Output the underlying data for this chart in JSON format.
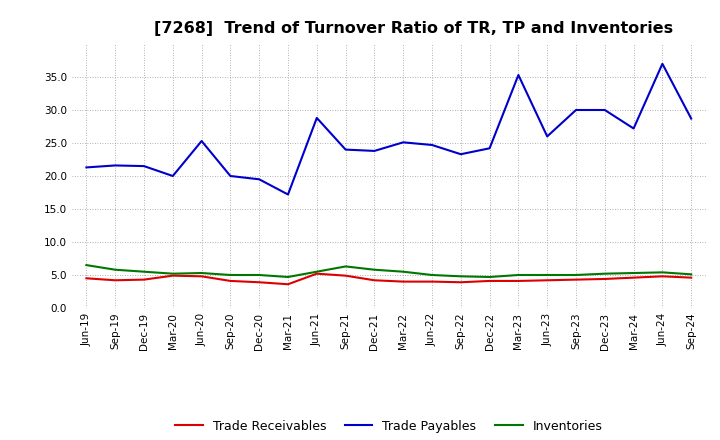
{
  "title": "[7268]  Trend of Turnover Ratio of TR, TP and Inventories",
  "ylim": [
    0.0,
    40.0
  ],
  "yticks": [
    0.0,
    5.0,
    10.0,
    15.0,
    20.0,
    25.0,
    30.0,
    35.0
  ],
  "background_color": "#ffffff",
  "plot_bg_color": "#ffffff",
  "grid_color": "#999999",
  "labels": [
    "Jun-19",
    "Sep-19",
    "Dec-19",
    "Mar-20",
    "Jun-20",
    "Sep-20",
    "Dec-20",
    "Mar-21",
    "Jun-21",
    "Sep-21",
    "Dec-21",
    "Mar-22",
    "Jun-22",
    "Sep-22",
    "Dec-22",
    "Mar-23",
    "Jun-23",
    "Sep-23",
    "Dec-23",
    "Mar-24",
    "Jun-24",
    "Sep-24"
  ],
  "trade_receivables": [
    4.5,
    4.2,
    4.3,
    4.9,
    4.8,
    4.1,
    3.9,
    3.6,
    5.2,
    4.9,
    4.2,
    4.0,
    4.0,
    3.9,
    4.1,
    4.1,
    4.2,
    4.3,
    4.4,
    4.6,
    4.8,
    4.6
  ],
  "trade_payables": [
    21.3,
    21.6,
    21.5,
    20.0,
    25.3,
    20.0,
    19.5,
    17.2,
    28.8,
    24.0,
    23.8,
    25.1,
    24.7,
    23.3,
    24.2,
    35.3,
    26.0,
    30.0,
    30.0,
    27.2,
    37.0,
    28.7
  ],
  "inventories": [
    6.5,
    5.8,
    5.5,
    5.2,
    5.3,
    5.0,
    5.0,
    4.7,
    5.5,
    6.3,
    5.8,
    5.5,
    5.0,
    4.8,
    4.7,
    5.0,
    5.0,
    5.0,
    5.2,
    5.3,
    5.4,
    5.1
  ],
  "tr_color": "#dd0000",
  "tp_color": "#0000cc",
  "inv_color": "#007700",
  "line_width": 1.5,
  "title_fontsize": 11.5,
  "tick_fontsize": 7.5,
  "legend_fontsize": 9
}
